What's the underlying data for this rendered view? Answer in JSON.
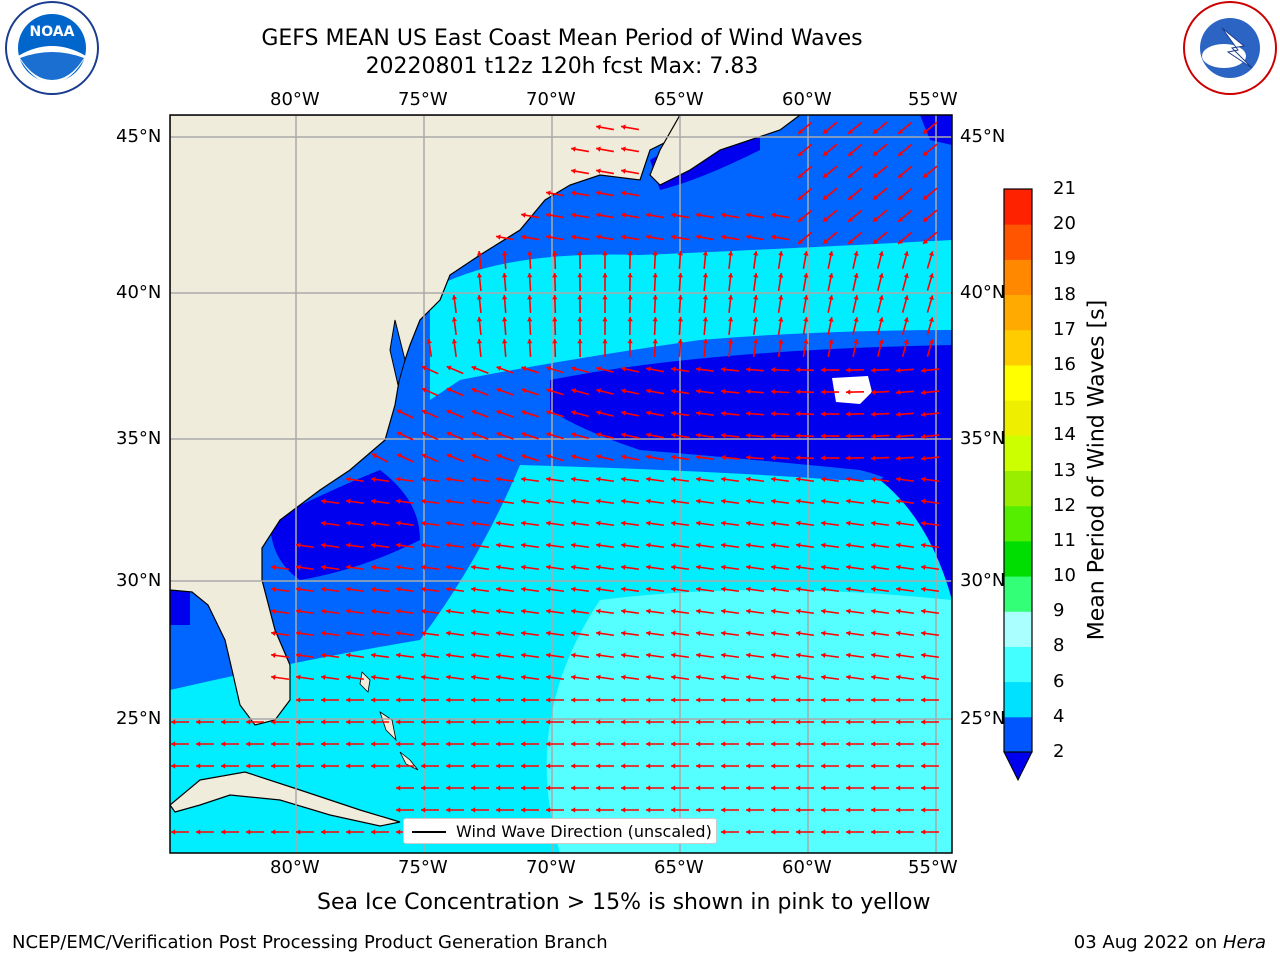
{
  "title": {
    "line1": "GEFS MEAN US East Coast Mean Period of Wind Waves",
    "line2": "20220801 t12z 120h fcst   Max: 7.83"
  },
  "logos": {
    "left": "noaa-logo",
    "right": "national-weather-service-logo"
  },
  "axes": {
    "longitudes": [
      "80°W",
      "75°W",
      "70°W",
      "65°W",
      "60°W",
      "55°W"
    ],
    "latitudes": [
      "45°N",
      "40°N",
      "35°N",
      "30°N",
      "25°N"
    ]
  },
  "colorbar": {
    "label": "Mean Period of Wind Waves [s]",
    "ticks": [
      "2",
      "4",
      "6",
      "8",
      "9",
      "10",
      "11",
      "12",
      "13",
      "14",
      "15",
      "16",
      "17",
      "18",
      "19",
      "20",
      "21"
    ],
    "colors": [
      "#0055ff",
      "#00e0ff",
      "#44ffff",
      "#aaffff",
      "#33ff77",
      "#00dd00",
      "#55ee00",
      "#99ee00",
      "#ccff00",
      "#eeee00",
      "#ffff00",
      "#ffcc00",
      "#ffaa00",
      "#ff8800",
      "#ff5500",
      "#ff2200"
    ],
    "extend_color": "#0000ee"
  },
  "legend": {
    "label": "Wind Wave Direction (unscaled)"
  },
  "note": "Sea Ice Concentration > 15% is shown in pink to yellow",
  "footer": {
    "left": "NCEP/EMC/Verification Post Processing Product Generation Branch",
    "date": "03 Aug 2022 on ",
    "machine": "Hera"
  },
  "map_colors": {
    "land": "#efecdc",
    "dark_blue": "#0000ee",
    "blue": "#0066ff",
    "cyan": "#00eeff",
    "light_cyan": "#55ffff",
    "arrow": "#ff0000",
    "grid": "#aaaaaa"
  }
}
